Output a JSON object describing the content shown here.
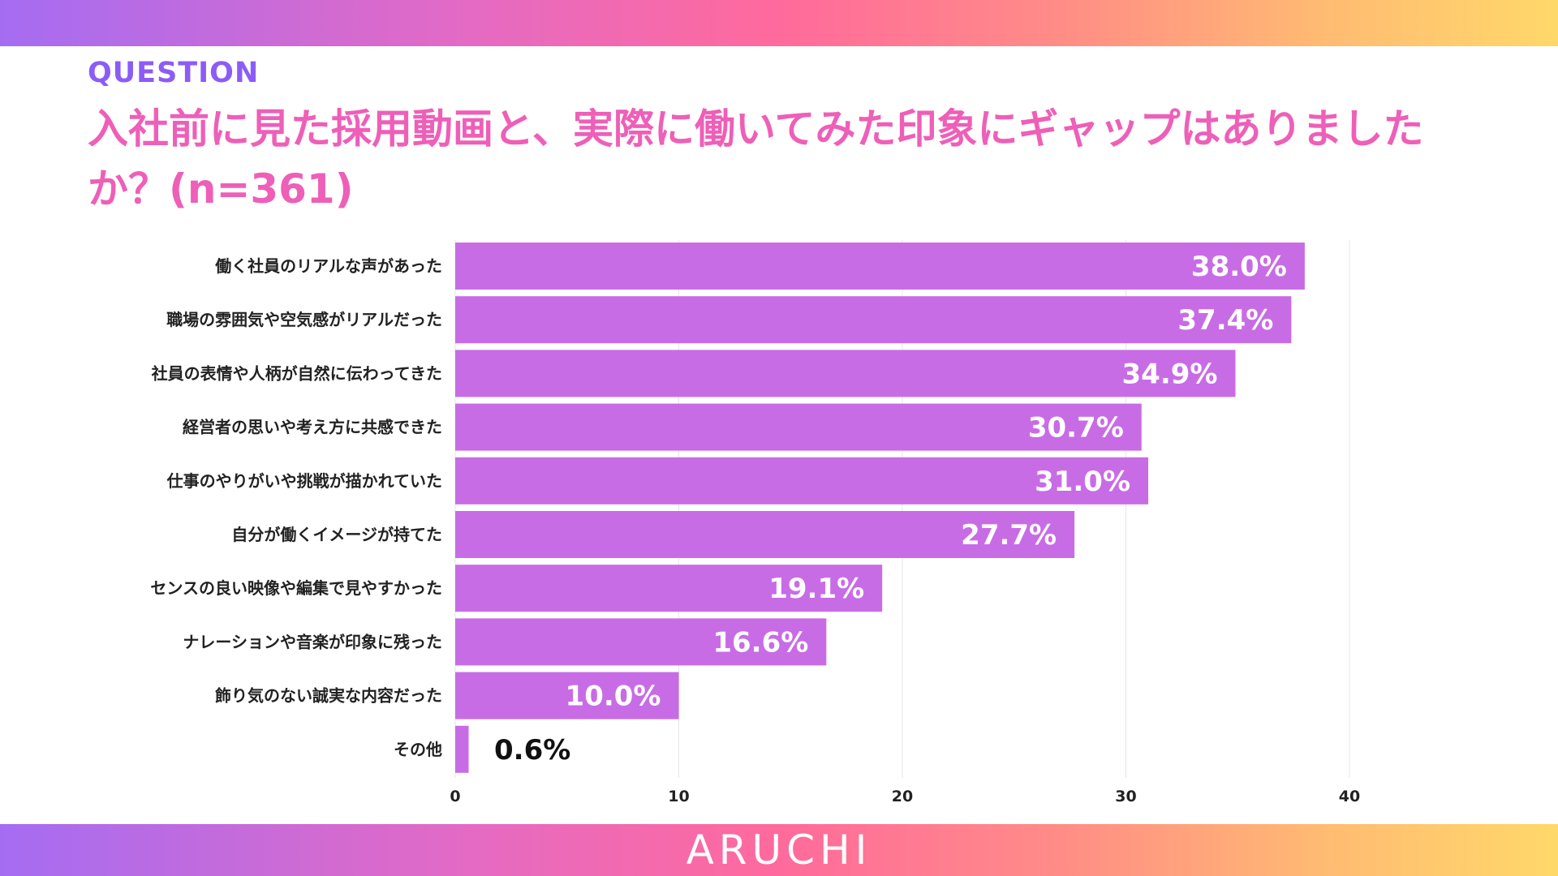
{
  "header": {
    "kicker": "QUESTION",
    "title": "入社前に見た採用動画と、実際に働いてみた印象にギャップはありましたか？(n=361)"
  },
  "footer": {
    "brand": "ARUCHI"
  },
  "colors": {
    "bar": "#c86ce6",
    "title": "#ee5fb8",
    "kicker": "#8b5cf6",
    "grid": "#e5e5e5",
    "label_inside": "#ffffff",
    "label_outside": "#111111"
  },
  "chart_data": {
    "type": "bar",
    "orientation": "horizontal",
    "categories": [
      "働く社員のリアルな声があった",
      "職場の雰囲気や空気感がリアルだった",
      "社員の表情や人柄が自然に伝わってきた",
      "経営者の思いや考え方に共感できた",
      "仕事のやりがいや挑戦が描かれていた",
      "自分が働くイメージが持てた",
      "センスの良い映像や編集で見やすかった",
      "ナレーションや音楽が印象に残った",
      "飾り気のない誠実な内容だった",
      "その他"
    ],
    "values": [
      38.0,
      37.4,
      34.9,
      30.7,
      31.0,
      27.7,
      19.1,
      16.6,
      10.0,
      0.6
    ],
    "value_labels": [
      "38.0%",
      "37.4%",
      "34.9%",
      "30.7%",
      "31.0%",
      "27.7%",
      "19.1%",
      "16.6%",
      "10.0%",
      "0.6%"
    ],
    "xlim": [
      0,
      45
    ],
    "xticks": [
      "0",
      "10",
      "20",
      "30",
      "40"
    ],
    "grid": true,
    "legend": "none"
  }
}
